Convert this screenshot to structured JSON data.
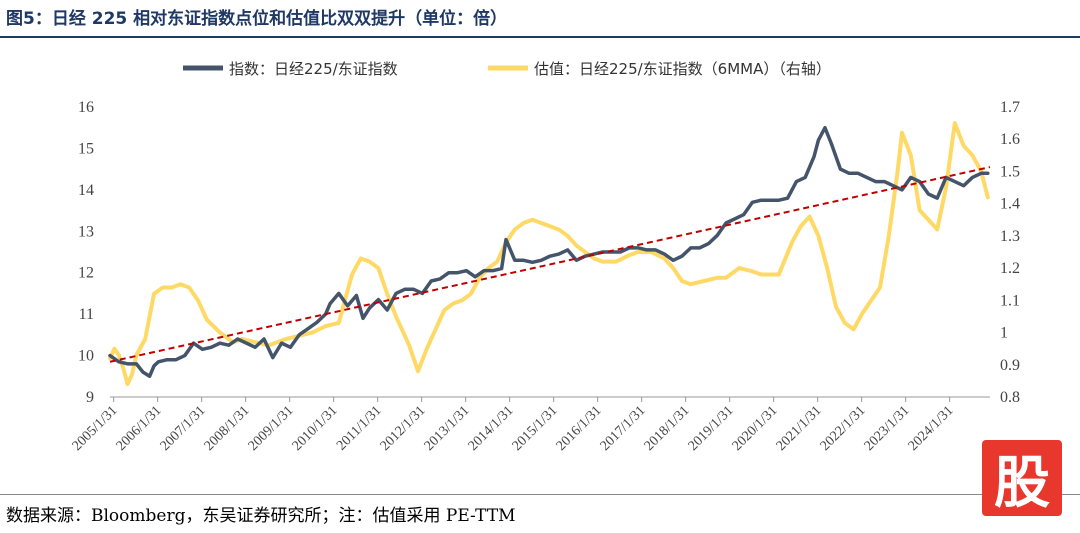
{
  "title": "图5：日经 225 相对东证指数点位和估值比双双提升（单位：倍）",
  "source": "数据来源：Bloomberg，东吴证券研究所；注：估值采用 PE-TTM",
  "logo_text": "股",
  "chart_data": {
    "type": "line",
    "title": "日经 225 相对东证指数点位和估值比双双提升（单位：倍）",
    "y_left": {
      "min": 9,
      "max": 16,
      "ticks": [
        "9",
        "10",
        "11",
        "12",
        "13",
        "14",
        "15",
        "16"
      ]
    },
    "y_right": {
      "min": 0.8,
      "max": 1.7,
      "ticks": [
        "0.8",
        "0.9",
        "1",
        "1.1",
        "1.2",
        "1.3",
        "1.4",
        "1.5",
        "1.6",
        "1.7"
      ]
    },
    "x_range": [
      2005.0,
      2025.0
    ],
    "x_ticks": [
      "2005/1/31",
      "2006/1/31",
      "2007/1/31",
      "2008/1/31",
      "2009/1/31",
      "2010/1/31",
      "2011/1/31",
      "2012/1/31",
      "2013/1/31",
      "2014/1/31",
      "2015/1/31",
      "2016/1/31",
      "2017/1/31",
      "2018/1/31",
      "2019/1/31",
      "2020/1/31",
      "2021/1/31",
      "2022/1/31",
      "2023/1/31",
      "2024/1/31"
    ],
    "legend": [
      "指数：日经225/东证指数",
      "估值：日经225/东证指数（6MMA）（右轴）"
    ],
    "colors": {
      "index": "#44546a",
      "valuation": "#ffd966",
      "trend": "#c00000"
    },
    "series": [
      {
        "name": "指数：日经225/东证指数",
        "axis": "left",
        "x": [
          2005.0,
          2005.2,
          2005.4,
          2005.6,
          2005.75,
          2005.9,
          2006.0,
          2006.1,
          2006.3,
          2006.5,
          2006.7,
          2006.9,
          2007.1,
          2007.3,
          2007.5,
          2007.7,
          2007.9,
          2008.1,
          2008.3,
          2008.5,
          2008.7,
          2008.9,
          2009.1,
          2009.3,
          2009.5,
          2009.7,
          2009.9,
          2010.0,
          2010.2,
          2010.4,
          2010.6,
          2010.75,
          2010.9,
          2011.1,
          2011.3,
          2011.5,
          2011.7,
          2011.9,
          2012.1,
          2012.3,
          2012.5,
          2012.7,
          2012.9,
          2013.1,
          2013.3,
          2013.5,
          2013.7,
          2013.9,
          2014.0,
          2014.2,
          2014.4,
          2014.6,
          2014.8,
          2015.0,
          2015.2,
          2015.4,
          2015.6,
          2015.8,
          2016.0,
          2016.2,
          2016.4,
          2016.6,
          2016.8,
          2017.0,
          2017.2,
          2017.4,
          2017.6,
          2017.8,
          2018.0,
          2018.2,
          2018.4,
          2018.6,
          2018.8,
          2019.0,
          2019.2,
          2019.4,
          2019.6,
          2019.8,
          2020.0,
          2020.2,
          2020.4,
          2020.6,
          2020.8,
          2021.0,
          2021.1,
          2021.25,
          2021.4,
          2021.6,
          2021.8,
          2022.0,
          2022.2,
          2022.4,
          2022.6,
          2022.8,
          2023.0,
          2023.2,
          2023.4,
          2023.6,
          2023.8,
          2024.0,
          2024.2,
          2024.4,
          2024.6,
          2024.8,
          2024.95
        ],
        "values": [
          10.0,
          9.85,
          9.8,
          9.8,
          9.6,
          9.5,
          9.75,
          9.85,
          9.9,
          9.9,
          10.0,
          10.3,
          10.15,
          10.2,
          10.3,
          10.25,
          10.4,
          10.3,
          10.2,
          10.4,
          9.95,
          10.3,
          10.2,
          10.5,
          10.65,
          10.8,
          11.0,
          11.25,
          11.5,
          11.2,
          11.45,
          10.9,
          11.15,
          11.35,
          11.1,
          11.5,
          11.6,
          11.6,
          11.5,
          11.8,
          11.85,
          12.0,
          12.0,
          12.05,
          11.9,
          12.05,
          12.05,
          12.1,
          12.8,
          12.3,
          12.3,
          12.25,
          12.3,
          12.4,
          12.45,
          12.55,
          12.3,
          12.4,
          12.45,
          12.5,
          12.5,
          12.5,
          12.6,
          12.6,
          12.55,
          12.55,
          12.45,
          12.3,
          12.4,
          12.6,
          12.6,
          12.7,
          12.9,
          13.2,
          13.3,
          13.4,
          13.7,
          13.75,
          13.75,
          13.75,
          13.8,
          14.2,
          14.3,
          14.8,
          15.2,
          15.5,
          15.1,
          14.5,
          14.4,
          14.4,
          14.3,
          14.2,
          14.2,
          14.1,
          14.0,
          14.3,
          14.2,
          13.9,
          13.8,
          14.3,
          14.2,
          14.1,
          14.3,
          14.4,
          14.4
        ]
      },
      {
        "name": "估值：日经225/东证指数（6MMA）（右轴）",
        "axis": "right",
        "x": [
          2005.0,
          2005.1,
          2005.2,
          2005.3,
          2005.4,
          2005.5,
          2005.6,
          2005.8,
          2006.0,
          2006.2,
          2006.4,
          2006.6,
          2006.8,
          2007.0,
          2007.2,
          2007.5,
          2007.8,
          2008.0,
          2008.3,
          2008.6,
          2009.0,
          2009.3,
          2009.6,
          2009.9,
          2010.2,
          2010.5,
          2010.7,
          2010.9,
          2011.1,
          2011.3,
          2011.5,
          2011.8,
          2012.0,
          2012.2,
          2012.4,
          2012.6,
          2012.8,
          2013.0,
          2013.2,
          2013.4,
          2013.6,
          2013.8,
          2014.0,
          2014.2,
          2014.4,
          2014.6,
          2014.8,
          2015.0,
          2015.2,
          2015.4,
          2015.6,
          2015.8,
          2016.0,
          2016.2,
          2016.5,
          2016.8,
          2017.0,
          2017.3,
          2017.6,
          2017.8,
          2018.0,
          2018.2,
          2018.5,
          2018.8,
          2019.0,
          2019.3,
          2019.6,
          2019.8,
          2020.0,
          2020.2,
          2020.5,
          2020.7,
          2020.9,
          2021.1,
          2021.3,
          2021.5,
          2021.7,
          2021.9,
          2022.1,
          2022.3,
          2022.5,
          2022.7,
          2022.9,
          2023.0,
          2023.2,
          2023.4,
          2023.6,
          2023.8,
          2024.0,
          2024.2,
          2024.4,
          2024.6,
          2024.8,
          2024.95
        ],
        "values": [
          0.92,
          0.95,
          0.93,
          0.89,
          0.84,
          0.87,
          0.93,
          0.98,
          1.12,
          1.14,
          1.14,
          1.15,
          1.14,
          1.1,
          1.04,
          1.0,
          0.97,
          0.98,
          0.97,
          0.96,
          0.98,
          0.99,
          1.0,
          1.02,
          1.03,
          1.18,
          1.23,
          1.22,
          1.2,
          1.12,
          1.05,
          0.96,
          0.88,
          0.95,
          1.01,
          1.07,
          1.09,
          1.1,
          1.12,
          1.17,
          1.2,
          1.22,
          1.28,
          1.32,
          1.34,
          1.35,
          1.34,
          1.33,
          1.32,
          1.3,
          1.27,
          1.25,
          1.23,
          1.22,
          1.22,
          1.24,
          1.25,
          1.25,
          1.23,
          1.2,
          1.16,
          1.15,
          1.16,
          1.17,
          1.17,
          1.2,
          1.19,
          1.18,
          1.18,
          1.18,
          1.28,
          1.33,
          1.36,
          1.3,
          1.2,
          1.08,
          1.03,
          1.01,
          1.06,
          1.1,
          1.14,
          1.3,
          1.5,
          1.62,
          1.55,
          1.38,
          1.35,
          1.32,
          1.45,
          1.65,
          1.58,
          1.55,
          1.5,
          1.42
        ]
      },
      {
        "name": "trend",
        "axis": "left",
        "x": [
          2005.0,
          2025.0
        ],
        "values": [
          9.85,
          14.55
        ]
      }
    ]
  }
}
